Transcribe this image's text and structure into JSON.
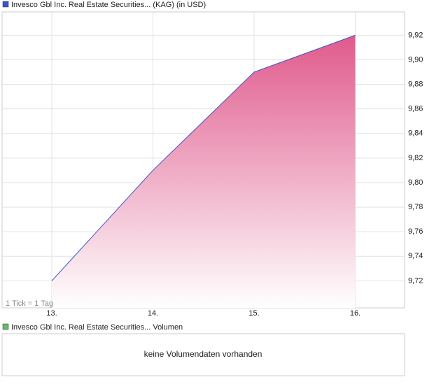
{
  "chart_data": {
    "type": "area",
    "categories": [
      "13.",
      "14.",
      "15.",
      "16."
    ],
    "series": [
      {
        "name": "Invesco Gbl Inc. Real Estate Securities... (KAG) (in USD)",
        "color": "#3a55c8",
        "fill": "#e05a8c",
        "values": [
          9.72,
          9.81,
          9.89,
          9.92
        ]
      }
    ],
    "ylim": [
      9.698,
      9.939
    ],
    "yticks": [
      {
        "value": 9.72,
        "label": "9,72"
      },
      {
        "value": 9.74,
        "label": "9,74"
      },
      {
        "value": 9.76,
        "label": "9,76"
      },
      {
        "value": 9.78,
        "label": "9,78"
      },
      {
        "value": 9.8,
        "label": "9,80"
      },
      {
        "value": 9.82,
        "label": "9,82"
      },
      {
        "value": 9.84,
        "label": "9,84"
      },
      {
        "value": 9.86,
        "label": "9,86"
      },
      {
        "value": 9.88,
        "label": "9,88"
      },
      {
        "value": 9.9,
        "label": "9,90"
      },
      {
        "value": 9.92,
        "label": "9,92"
      }
    ],
    "grid": true,
    "note": "1 Tick = 1 Tag"
  },
  "volume_panel": {
    "title": "Invesco Gbl Inc. Real Estate Securities... Volumen",
    "color": "#66bb66",
    "message": "keine Volumendaten vorhanden"
  }
}
